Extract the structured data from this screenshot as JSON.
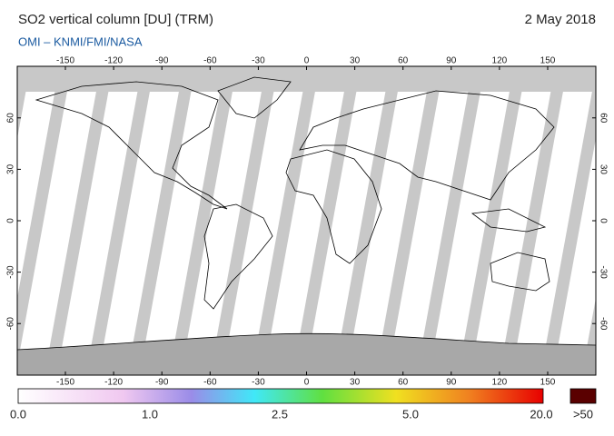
{
  "header": {
    "title": "SO2 vertical column [DU] (TRM)",
    "date": "2 May 2018",
    "credit": "OMI  –  KNMI/FMI/NASA"
  },
  "map": {
    "lon_ticks": [
      -150,
      -120,
      -90,
      -60,
      -30,
      0,
      30,
      60,
      90,
      120,
      150
    ],
    "lat_ticks": [
      -60,
      -30,
      0,
      30,
      60
    ]
  },
  "colorbar": {
    "labels": [
      "0.0",
      "1.0",
      "2.5",
      "5.0",
      "20.0"
    ],
    "overflow_label": ">50"
  }
}
